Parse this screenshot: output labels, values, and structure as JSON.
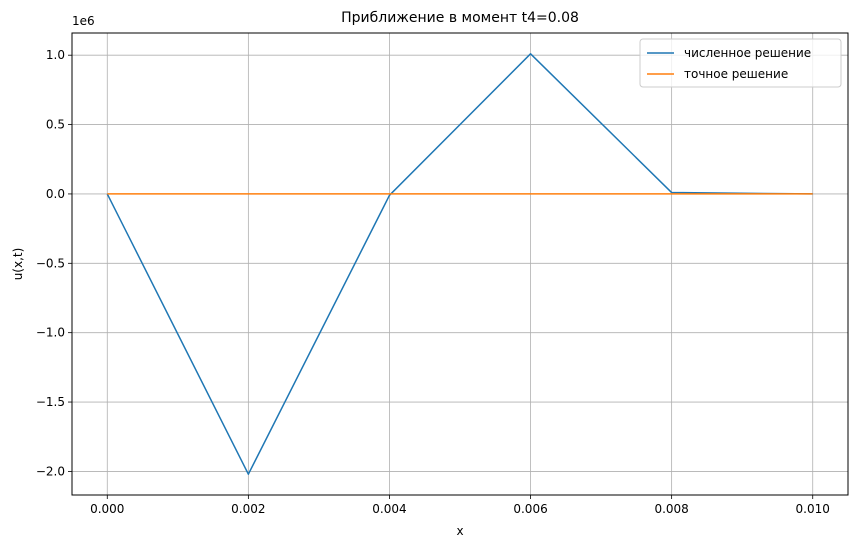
{
  "chart_data": {
    "type": "line",
    "title": "Приближение в момент t4=0.08",
    "xlabel": "x",
    "ylabel": "u(x,t)",
    "y_offset_label": "1e6",
    "xlim": [
      -0.0005,
      0.0105
    ],
    "ylim": [
      -2.17,
      1.16
    ],
    "y_scale_factor": 1000000,
    "grid": true,
    "legend_position": "top-right",
    "x_ticks": [
      0.0,
      0.002,
      0.004,
      0.006,
      0.008,
      0.01
    ],
    "x_tick_labels": [
      "0.000",
      "0.002",
      "0.004",
      "0.006",
      "0.008",
      "0.010"
    ],
    "y_ticks": [
      -2.0,
      -1.5,
      -1.0,
      -0.5,
      0.0,
      0.5,
      1.0
    ],
    "y_tick_labels": [
      "−2.0",
      "−1.5",
      "−1.0",
      "−0.5",
      "0.0",
      "0.5",
      "1.0"
    ],
    "x": [
      0.0,
      0.002,
      0.004,
      0.006,
      0.008,
      0.01
    ],
    "series": [
      {
        "name": "численное решение",
        "color": "#1f77b4",
        "values": [
          0.0,
          -2.02,
          -0.01,
          1.01,
          0.01,
          0.0
        ]
      },
      {
        "name": "точное решение",
        "color": "#ff7f0e",
        "values": [
          0.0,
          0.0,
          0.0,
          0.0,
          0.0,
          0.0
        ]
      }
    ]
  }
}
